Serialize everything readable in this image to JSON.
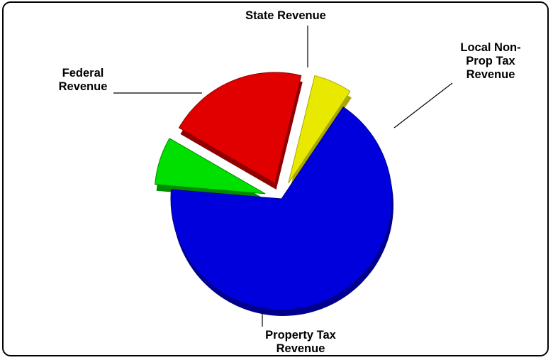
{
  "chart_data": {
    "type": "pie",
    "style": "3d-exploded",
    "title": "",
    "slices": [
      {
        "label": "State Revenue",
        "label_lines": [
          "State Revenue"
        ],
        "percent": 20.5,
        "color": "#e00000",
        "side_color": "#900000",
        "exploded": true
      },
      {
        "label": "Local Non-Prop Tax Revenue",
        "label_lines": [
          "Local Non-",
          "Prop Tax",
          "Revenue"
        ],
        "percent": 5.6,
        "color": "#e8e800",
        "side_color": "#a8a800",
        "exploded": true
      },
      {
        "label": "Property Tax Revenue",
        "label_lines": [
          "Property Tax",
          "Revenue"
        ],
        "percent": 66.9,
        "color": "#0000dd",
        "side_color": "#00008c",
        "exploded": false
      },
      {
        "label": "Federal Revenue",
        "label_lines": [
          "Federal",
          "Revenue"
        ],
        "percent": 7.0,
        "color": "#00e000",
        "side_color": "#008a00",
        "exploded": true
      }
    ],
    "legend": "none"
  }
}
